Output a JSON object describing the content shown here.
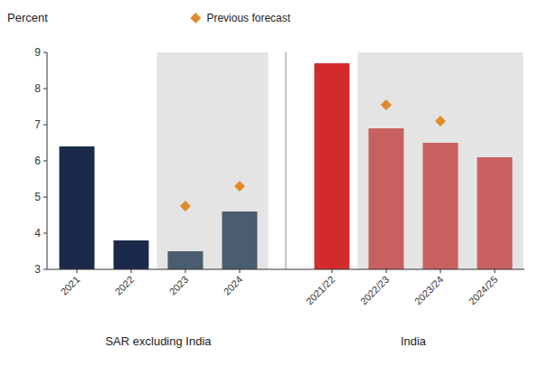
{
  "chart_data": {
    "type": "bar",
    "ylabel": "Percent",
    "categories": [
      "2021",
      "2022",
      "2023",
      "2024",
      "2021/22",
      "2022/23",
      "2023/24",
      "2024/25"
    ],
    "values": [
      6.4,
      3.8,
      3.5,
      4.6,
      8.7,
      6.9,
      6.5,
      6.1
    ],
    "colors": [
      "#1b2a4a",
      "#1b2a4a",
      "#4a5c6e",
      "#4a5c6e",
      "#d32b2b",
      "#c96060",
      "#c96060",
      "#c96060"
    ],
    "forecast": [
      false,
      false,
      true,
      true,
      false,
      true,
      true,
      true
    ],
    "groups": [
      {
        "label": "SAR excluding India",
        "categories": [
          "2021",
          "2022",
          "2023",
          "2024"
        ]
      },
      {
        "label": "India",
        "categories": [
          "2021/22",
          "2022/23",
          "2023/24",
          "2024/25"
        ]
      }
    ],
    "series": [
      {
        "name": "Previous forecast",
        "type": "scatter",
        "marker": "diamond",
        "color": "#e08c2a",
        "values": [
          null,
          null,
          4.75,
          5.3,
          null,
          7.55,
          7.1,
          null
        ]
      }
    ],
    "ylim": [
      3,
      9
    ],
    "yticks": [
      3,
      4,
      5,
      6,
      7,
      8,
      9
    ],
    "grid": false,
    "legend": "top"
  }
}
